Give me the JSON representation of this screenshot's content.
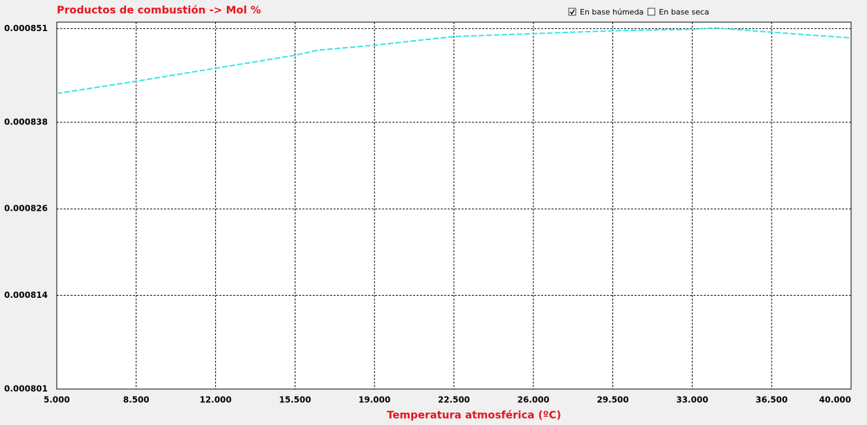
{
  "chart_data": {
    "type": "line",
    "title": "Productos de combustión -> Mol %",
    "x_label": "Temperatura atmosférica (ºC)",
    "controls": [
      {
        "label": "En base húmeda",
        "checked": true
      },
      {
        "label": "En base seca",
        "checked": false
      }
    ],
    "x": [
      5,
      8.5,
      12,
      15.5,
      16.5,
      19,
      22.5,
      26,
      29.5,
      33,
      34,
      36.5,
      40
    ],
    "series": [
      {
        "color": "#33e6e6",
        "values": [
          0.000842,
          0.0008437,
          0.0008455,
          0.0008473,
          0.000848,
          0.0008487,
          0.0008499,
          0.0008503,
          0.0008507,
          0.0008509,
          0.0008511,
          0.0008505,
          0.0008497
        ]
      }
    ],
    "xlim": [
      5,
      40
    ],
    "xticks": [
      {
        "value": 5,
        "label": "5.000"
      },
      {
        "value": 8.5,
        "label": "8.500"
      },
      {
        "value": 12,
        "label": "12.000"
      },
      {
        "value": 15.5,
        "label": "15.500"
      },
      {
        "value": 19,
        "label": "19.000"
      },
      {
        "value": 22.5,
        "label": "22.500"
      },
      {
        "value": 26,
        "label": "26.000"
      },
      {
        "value": 29.5,
        "label": "29.500"
      },
      {
        "value": 33,
        "label": "33.000"
      },
      {
        "value": 36.5,
        "label": "36.500"
      },
      {
        "value": 40,
        "label": "40.000"
      }
    ],
    "ylim": [
      0.000801,
      0.0008519
    ],
    "yticks": [
      0.000801,
      0.000814,
      0.000826,
      0.000838,
      0.000851
    ],
    "grid": true
  }
}
